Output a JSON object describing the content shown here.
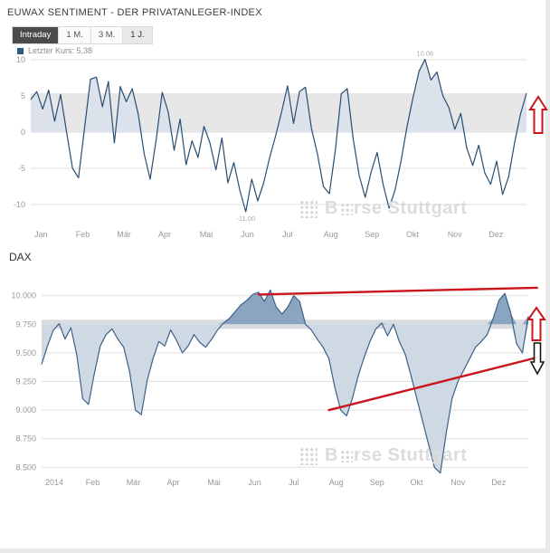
{
  "page": {
    "title": "EUWAX SENTIMENT - DER PRIVATANLEGER-INDEX",
    "dax_title": "DAX"
  },
  "toolbar": {
    "tabs": [
      "Intraday",
      "1 M.",
      "3 M.",
      "1 J."
    ],
    "selected": "Intraday",
    "last_price": "Letzter Kurs: 5,38"
  },
  "watermark": {
    "brand": "Boerse Stuttgart",
    "b": "B",
    "rest": "rse Stuttgart"
  },
  "arrows": {
    "sentiment_up": {
      "direction": "up",
      "color": "#c9151b"
    },
    "dax_up": {
      "direction": "up",
      "color": "#c9151b"
    },
    "dax_down": {
      "direction": "down",
      "color": "#161616"
    }
  },
  "chart_data": [
    {
      "id": "euwax-sentiment",
      "type": "area",
      "label": "EUWAX Sentiment Privatanleger-Index, 1 Jahr",
      "x_labels": [
        "Jan",
        "Feb",
        "Mär",
        "Apr",
        "Mai",
        "Jun",
        "Jul",
        "Aug",
        "Sep",
        "Okt",
        "Nov",
        "Dez"
      ],
      "y_ticks": [
        10,
        5,
        0,
        -5,
        -10
      ],
      "y_tick_labels": [
        "10",
        "5",
        "0",
        "-5",
        "-10"
      ],
      "ylim": [
        -12.5,
        11
      ],
      "baseline": 0,
      "band": [
        0,
        5.38
      ],
      "band_color": "#e7e7e7",
      "fill_above": "#dbe2eb",
      "fill_below": null,
      "line_color": "#2a4d70",
      "last_value": 5.38,
      "annotations": [
        {
          "text": "10.06",
          "anchor": "max"
        },
        {
          "text": "-11.00",
          "anchor": "min"
        }
      ],
      "values": [
        4.5,
        5.6,
        3.2,
        5.8,
        1.5,
        5.2,
        0.0,
        -5.0,
        -6.3,
        0.5,
        7.3,
        7.6,
        3.5,
        7.0,
        -1.5,
        6.3,
        4.2,
        6.0,
        2.5,
        -3.0,
        -6.5,
        -1.0,
        5.5,
        2.8,
        -2.5,
        1.8,
        -4.5,
        -1.2,
        -3.5,
        0.8,
        -1.5,
        -5.2,
        -0.8,
        -7.0,
        -4.2,
        -8.0,
        -11.0,
        -6.5,
        -9.5,
        -7.0,
        -3.5,
        -0.5,
        2.8,
        6.4,
        1.2,
        5.6,
        6.2,
        0.5,
        -3.0,
        -7.5,
        -8.5,
        -2.5,
        5.3,
        6.0,
        -1.0,
        -6.0,
        -9.0,
        -5.5,
        -2.8,
        -7.2,
        -10.5,
        -8.0,
        -4.0,
        0.8,
        4.8,
        8.4,
        10.06,
        7.2,
        8.3,
        5.0,
        3.4,
        0.4,
        2.6,
        -2.2,
        -4.6,
        -1.8,
        -5.6,
        -7.2,
        -4.0,
        -8.6,
        -6.2,
        -1.5,
        2.5,
        5.38
      ]
    },
    {
      "id": "dax",
      "type": "area",
      "label": "DAX, 1 Jahr (2014)",
      "x_labels": [
        "2014",
        "Feb",
        "Mär",
        "Apr",
        "Mai",
        "Jun",
        "Jul",
        "Aug",
        "Sep",
        "Okt",
        "Nov",
        "Dez"
      ],
      "y_ticks": [
        10000,
        9750,
        9500,
        9250,
        9000,
        8750,
        8500
      ],
      "y_tick_labels": [
        "10.000",
        "9.750",
        "9.500",
        "9.250",
        "9.000",
        "8.750",
        "8.500"
      ],
      "ylim": [
        8400,
        10140
      ],
      "baseline": 9750,
      "band": [
        9710,
        9790
      ],
      "band_color": "#d8dbdf",
      "fill_above": "#8ba5c1",
      "fill_below": "#cfd9e4",
      "line_color": "#3d6089",
      "trendlines": [
        {
          "x1_idx": 37,
          "y1": 10010,
          "x2_idx": 84.5,
          "y2": 10070,
          "color": "#c9151b"
        },
        {
          "x1_idx": 49,
          "y1": 9000,
          "x2_idx": 84.5,
          "y2": 9460,
          "color": "#c9151b"
        }
      ],
      "values": [
        9400,
        9560,
        9700,
        9755,
        9620,
        9720,
        9480,
        9100,
        9050,
        9320,
        9560,
        9660,
        9710,
        9620,
        9550,
        9340,
        9000,
        8960,
        9260,
        9450,
        9600,
        9560,
        9700,
        9610,
        9500,
        9560,
        9660,
        9590,
        9550,
        9620,
        9700,
        9760,
        9800,
        9860,
        9920,
        9960,
        10010,
        10030,
        9950,
        10050,
        9900,
        9840,
        9900,
        10000,
        9950,
        9750,
        9700,
        9620,
        9550,
        9450,
        9200,
        9000,
        8950,
        9100,
        9300,
        9460,
        9600,
        9710,
        9760,
        9650,
        9750,
        9600,
        9490,
        9300,
        9100,
        8900,
        8700,
        8500,
        8450,
        8800,
        9100,
        9250,
        9350,
        9450,
        9550,
        9600,
        9660,
        9800,
        9960,
        10020,
        9850,
        9580,
        9500,
        9820
      ]
    }
  ]
}
